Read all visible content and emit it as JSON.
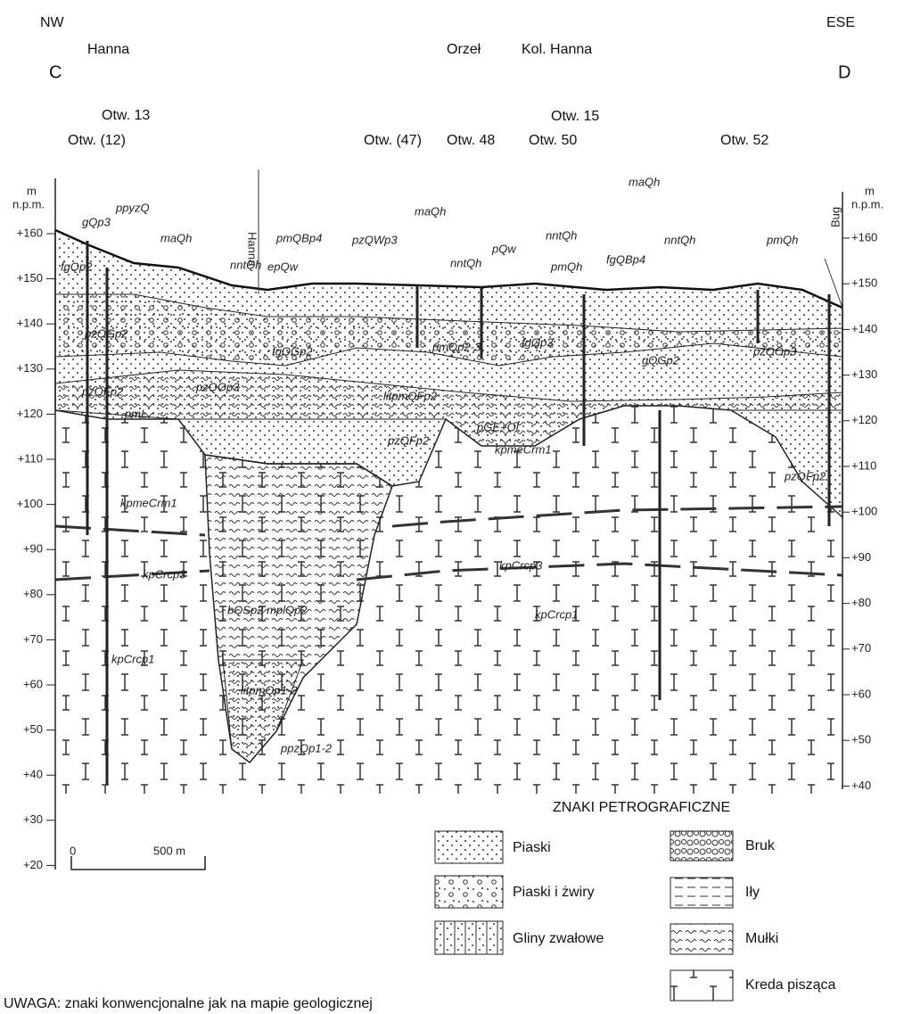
{
  "header": {
    "left_direction": "NW",
    "right_direction": "ESE",
    "left_point": "C",
    "right_point": "D"
  },
  "places": [
    "Hanna",
    "Orzeł",
    "Kol. Hanna"
  ],
  "boreholes": [
    "Otw. 13",
    "Otw. (12)",
    "Otw. (47)",
    "Otw. 48",
    "Otw. 50",
    "Otw. 15",
    "Otw. 52"
  ],
  "axis": {
    "unit_left": "m",
    "datum_left": "n.p.m.",
    "unit_right": "m",
    "datum_right": "n.p.m.",
    "left_ticks": [
      "+160",
      "+150",
      "+140",
      "+130",
      "+120",
      "+110",
      "+100",
      "+90",
      "+80",
      "+70",
      "+60",
      "+50",
      "+40",
      "+30",
      "+20"
    ],
    "right_ticks": [
      "+160",
      "+150",
      "+140",
      "+130",
      "+120",
      "+110",
      "+100",
      "+90",
      "+80",
      "+70",
      "+60",
      "+50",
      "+40"
    ]
  },
  "river_labels": [
    "Hanna",
    "Bug"
  ],
  "units": [
    "gQp3",
    "ppyzQ",
    "maQh",
    "nntQh",
    "epQw",
    "pmQBp4",
    "pzQWp3",
    "maQh",
    "nntQh",
    "pQw",
    "nntQh",
    "pmQh",
    "fgQBp4",
    "nntQh",
    "maQh",
    "pmQh",
    "fgQp2",
    "pzQGp2",
    "fgQGp2",
    "pmQp2-3",
    "fgQp3",
    "gQGp2",
    "pzQOp3",
    "pzQFp2",
    "pzQOp3",
    "litpmQFp2",
    "pzQFp2",
    "pGE+Ol",
    "kpmeCrm1",
    "kpmeCrm1",
    "kpCrcp3",
    "kpCrcp3",
    "bQSp2 mplQp2",
    "kpCrcp1",
    "kpCrcp1",
    "litpmQp1-2",
    "ppzQp1-2",
    "pzQFp2",
    "pmL"
  ],
  "scale_bar": {
    "start": "0",
    "end": "500 m"
  },
  "legend": {
    "title": "ZNAKI PETROGRAFICZNE",
    "items": [
      "Piaski",
      "Piaski i żwiry",
      "Gliny zwałowe",
      "Bruk",
      "Iły",
      "Mułki",
      "Kreda pisząca"
    ]
  },
  "note": "UWAGA: znaki konwencjonalne jak na mapie geologicznej"
}
